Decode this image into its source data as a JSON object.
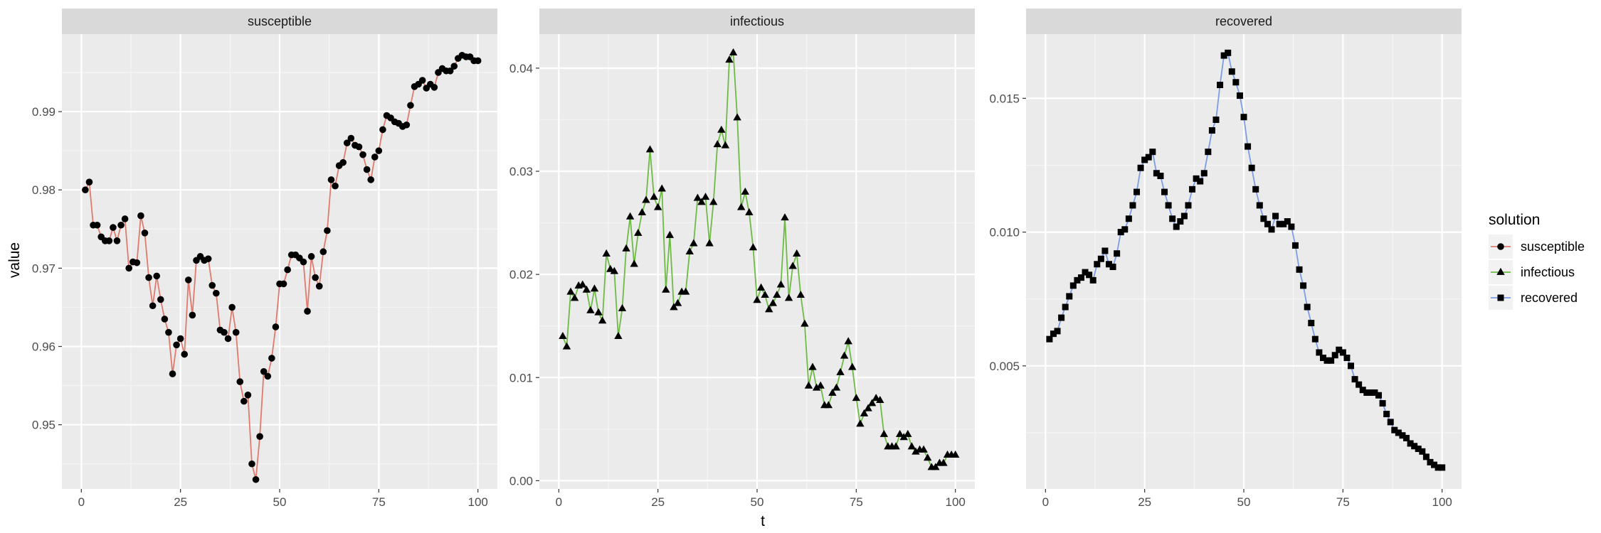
{
  "chart_data": {
    "type": "line",
    "layout": "facet-wrap, three panels, free y scales",
    "xlabel": "t",
    "ylabel": "value",
    "x_ticks": [
      0,
      25,
      50,
      75,
      100
    ],
    "xlim": [
      1,
      100
    ],
    "grid": true,
    "legend": {
      "title": "solution",
      "placement": "right",
      "entries": [
        "susceptible",
        "infectious",
        "recovered"
      ]
    },
    "panels": [
      {
        "strip": "susceptible",
        "series": "susceptible",
        "color": "#E07A6D",
        "marker": "circle",
        "y_ticks": [
          0.95,
          0.96,
          0.97,
          0.98,
          0.99
        ],
        "y_tick_labels": [
          "0.95",
          "0.96",
          "0.97",
          "0.98",
          "0.99"
        ],
        "ylim": [
          0.9418,
          0.9999
        ]
      },
      {
        "strip": "infectious",
        "series": "infectious",
        "color": "#6DBB45",
        "marker": "triangle",
        "y_ticks": [
          0,
          0.01,
          0.02,
          0.03,
          0.04
        ],
        "y_tick_labels": [
          "0.00",
          "0.01",
          "0.02",
          "0.03",
          "0.04"
        ],
        "ylim": [
          -0.0008,
          0.0433
        ]
      },
      {
        "strip": "recovered",
        "series": "recovered",
        "color": "#7B9CE6",
        "marker": "square",
        "y_ticks": [
          0.005,
          0.01,
          0.015
        ],
        "y_tick_labels": [
          "0.005",
          "0.010",
          "0.015"
        ],
        "ylim": [
          0.0004,
          0.0174
        ]
      }
    ],
    "series": [
      {
        "name": "susceptible",
        "x": [
          1,
          2,
          3,
          4,
          5,
          6,
          7,
          8,
          9,
          10,
          11,
          12,
          13,
          14,
          15,
          16,
          17,
          18,
          19,
          20,
          21,
          22,
          23,
          24,
          25,
          26,
          27,
          28,
          29,
          30,
          31,
          32,
          33,
          34,
          35,
          36,
          37,
          38,
          39,
          40,
          41,
          42,
          43,
          44,
          45,
          46,
          47,
          48,
          49,
          50,
          51,
          52,
          53,
          54,
          55,
          56,
          57,
          58,
          59,
          60,
          61,
          62,
          63,
          64,
          65,
          66,
          67,
          68,
          69,
          70,
          71,
          72,
          73,
          74,
          75,
          76,
          77,
          78,
          79,
          80,
          81,
          82,
          83,
          84,
          85,
          86,
          87,
          88,
          89,
          90,
          91,
          92,
          93,
          94,
          95,
          96,
          97,
          98,
          99,
          100
        ],
        "values": [
          0.98,
          0.981,
          0.9755,
          0.9755,
          0.974,
          0.9735,
          0.9735,
          0.9752,
          0.9735,
          0.9755,
          0.9763,
          0.97,
          0.9708,
          0.9707,
          0.9767,
          0.9745,
          0.9688,
          0.9652,
          0.969,
          0.966,
          0.9635,
          0.9618,
          0.9565,
          0.9602,
          0.961,
          0.959,
          0.9685,
          0.964,
          0.971,
          0.9715,
          0.971,
          0.9712,
          0.9678,
          0.9668,
          0.9621,
          0.9618,
          0.961,
          0.965,
          0.9618,
          0.9555,
          0.953,
          0.9538,
          0.945,
          0.943,
          0.9485,
          0.9568,
          0.9562,
          0.9585,
          0.9625,
          0.968,
          0.968,
          0.9698,
          0.9717,
          0.9717,
          0.9713,
          0.9708,
          0.9645,
          0.9715,
          0.9688,
          0.9677,
          0.9721,
          0.9748,
          0.9813,
          0.9805,
          0.9831,
          0.9835,
          0.986,
          0.9866,
          0.9857,
          0.9855,
          0.9845,
          0.9826,
          0.9813,
          0.9842,
          0.985,
          0.9877,
          0.9895,
          0.9892,
          0.9887,
          0.9885,
          0.9881,
          0.9883,
          0.9908,
          0.9932,
          0.9935,
          0.994,
          0.993,
          0.9935,
          0.9931,
          0.995,
          0.9955,
          0.9952,
          0.9952,
          0.9958,
          0.9968,
          0.9972,
          0.997,
          0.997,
          0.9965,
          0.9965
        ]
      },
      {
        "name": "infectious",
        "x": [
          1,
          2,
          3,
          4,
          5,
          6,
          7,
          8,
          9,
          10,
          11,
          12,
          13,
          14,
          15,
          16,
          17,
          18,
          19,
          20,
          21,
          22,
          23,
          24,
          25,
          26,
          27,
          28,
          29,
          30,
          31,
          32,
          33,
          34,
          35,
          36,
          37,
          38,
          39,
          40,
          41,
          42,
          43,
          44,
          45,
          46,
          47,
          48,
          49,
          50,
          51,
          52,
          53,
          54,
          55,
          56,
          57,
          58,
          59,
          60,
          61,
          62,
          63,
          64,
          65,
          66,
          67,
          68,
          69,
          70,
          71,
          72,
          73,
          74,
          75,
          76,
          77,
          78,
          79,
          80,
          81,
          82,
          83,
          84,
          85,
          86,
          87,
          88,
          89,
          90,
          91,
          92,
          93,
          94,
          95,
          96,
          97,
          98,
          99,
          100
        ],
        "values": [
          0.014,
          0.013,
          0.0183,
          0.0177,
          0.0189,
          0.019,
          0.0185,
          0.0165,
          0.0186,
          0.0163,
          0.0155,
          0.022,
          0.0205,
          0.0203,
          0.014,
          0.0167,
          0.0225,
          0.0256,
          0.021,
          0.024,
          0.026,
          0.0272,
          0.0321,
          0.0275,
          0.0265,
          0.0283,
          0.0185,
          0.0238,
          0.0168,
          0.0172,
          0.0183,
          0.0183,
          0.0222,
          0.023,
          0.0274,
          0.027,
          0.0275,
          0.023,
          0.027,
          0.0326,
          0.034,
          0.0325,
          0.0408,
          0.0415,
          0.0352,
          0.0265,
          0.028,
          0.026,
          0.0226,
          0.0175,
          0.0187,
          0.018,
          0.0166,
          0.0172,
          0.018,
          0.019,
          0.0255,
          0.0177,
          0.0208,
          0.022,
          0.018,
          0.0152,
          0.0092,
          0.011,
          0.009,
          0.0092,
          0.0073,
          0.0073,
          0.0085,
          0.009,
          0.0105,
          0.0121,
          0.0135,
          0.011,
          0.008,
          0.0055,
          0.0065,
          0.007,
          0.0075,
          0.008,
          0.0078,
          0.0045,
          0.0033,
          0.0033,
          0.0033,
          0.0045,
          0.0042,
          0.0045,
          0.0033,
          0.0028,
          0.003,
          0.003,
          0.0022,
          0.0013,
          0.0013,
          0.0017,
          0.0017,
          0.0025,
          0.0025,
          0.0025
        ]
      },
      {
        "name": "recovered",
        "x": [
          1,
          2,
          3,
          4,
          5,
          6,
          7,
          8,
          9,
          10,
          11,
          12,
          13,
          14,
          15,
          16,
          17,
          18,
          19,
          20,
          21,
          22,
          23,
          24,
          25,
          26,
          27,
          28,
          29,
          30,
          31,
          32,
          33,
          34,
          35,
          36,
          37,
          38,
          39,
          40,
          41,
          42,
          43,
          44,
          45,
          46,
          47,
          48,
          49,
          50,
          51,
          52,
          53,
          54,
          55,
          56,
          57,
          58,
          59,
          60,
          61,
          62,
          63,
          64,
          65,
          66,
          67,
          68,
          69,
          70,
          71,
          72,
          73,
          74,
          75,
          76,
          77,
          78,
          79,
          80,
          81,
          82,
          83,
          84,
          85,
          86,
          87,
          88,
          89,
          90,
          91,
          92,
          93,
          94,
          95,
          96,
          97,
          98,
          99,
          100
        ],
        "values": [
          0.006,
          0.0062,
          0.0063,
          0.0068,
          0.0072,
          0.0076,
          0.008,
          0.0082,
          0.0083,
          0.0085,
          0.0084,
          0.0082,
          0.0088,
          0.009,
          0.0093,
          0.0088,
          0.0087,
          0.0092,
          0.01,
          0.0101,
          0.0105,
          0.011,
          0.0115,
          0.0124,
          0.0127,
          0.0128,
          0.013,
          0.0122,
          0.0121,
          0.0115,
          0.011,
          0.0105,
          0.0102,
          0.0104,
          0.0106,
          0.011,
          0.0116,
          0.012,
          0.0119,
          0.0122,
          0.013,
          0.0138,
          0.0142,
          0.0155,
          0.0166,
          0.0167,
          0.016,
          0.0156,
          0.0151,
          0.0143,
          0.0132,
          0.0124,
          0.0116,
          0.011,
          0.0105,
          0.0103,
          0.0101,
          0.0106,
          0.0103,
          0.0103,
          0.0104,
          0.0102,
          0.0095,
          0.0086,
          0.008,
          0.0072,
          0.0066,
          0.006,
          0.0055,
          0.0053,
          0.0052,
          0.0052,
          0.0054,
          0.0056,
          0.0055,
          0.0053,
          0.005,
          0.0045,
          0.0043,
          0.0041,
          0.004,
          0.004,
          0.004,
          0.0039,
          0.0036,
          0.0032,
          0.0029,
          0.0026,
          0.0025,
          0.0024,
          0.0023,
          0.0021,
          0.002,
          0.0019,
          0.0018,
          0.0016,
          0.0014,
          0.0013,
          0.0012,
          0.0012
        ]
      }
    ]
  }
}
